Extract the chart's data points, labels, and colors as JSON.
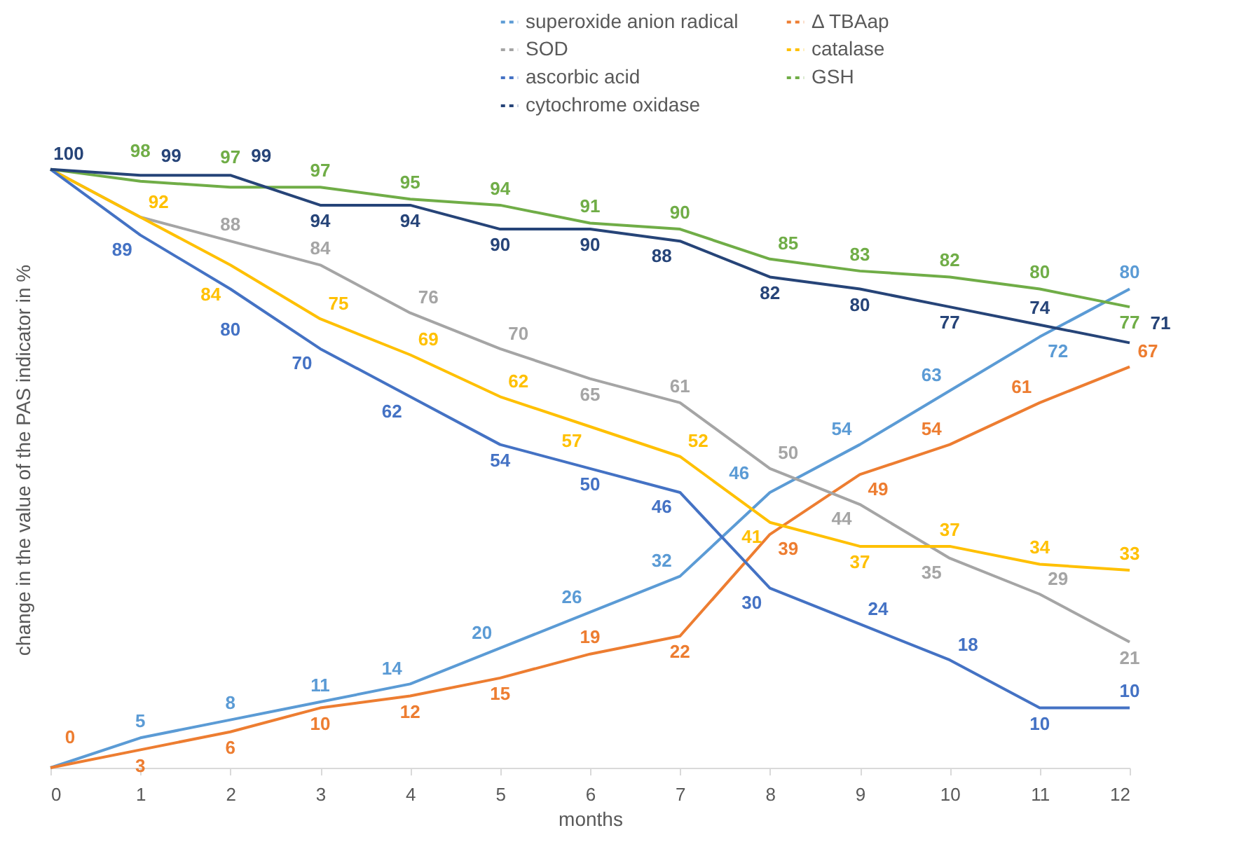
{
  "chart_data": {
    "type": "line",
    "xlabel": "months",
    "ylabel": "change in the value of the PAS indicator in %",
    "x": [
      0,
      1,
      2,
      3,
      4,
      5,
      6,
      7,
      8,
      9,
      10,
      11,
      12
    ],
    "xlim": [
      0,
      12
    ],
    "xticks": [
      0,
      1,
      2,
      3,
      4,
      5,
      6,
      7,
      8,
      9,
      10,
      11,
      12
    ],
    "tick_labels": "x",
    "series": [
      {
        "name": "superoxide anion radical",
        "color": "#5b9bd5",
        "values": [
          0,
          5,
          8,
          11,
          14,
          20,
          26,
          32,
          46,
          54,
          63,
          72,
          80
        ],
        "value_labels": [
          null,
          "5",
          "8",
          "11",
          "14",
          "20",
          "26",
          "32",
          "46",
          "54",
          "63",
          "72",
          "80"
        ]
      },
      {
        "name": "Δ TBAap",
        "color": "#ed7d31",
        "values": [
          0,
          3,
          6,
          10,
          12,
          15,
          19,
          22,
          39,
          49,
          54,
          61,
          67
        ],
        "value_labels": [
          "0",
          "3",
          "6",
          "10",
          "12",
          "15",
          "19",
          "22",
          "39",
          "49",
          "54",
          "61",
          "67"
        ]
      },
      {
        "name": "SOD",
        "color": "#a5a5a5",
        "values": [
          100,
          92,
          88,
          84,
          76,
          70,
          65,
          61,
          50,
          44,
          35,
          29,
          21
        ],
        "value_labels": [
          null,
          null,
          "88",
          "84",
          "76",
          "70",
          "65",
          "61",
          "50",
          "44",
          "35",
          "29",
          "21"
        ]
      },
      {
        "name": "catalase",
        "color": "#ffc000",
        "values": [
          100,
          92,
          84,
          75,
          69,
          62,
          57,
          52,
          41,
          37,
          37,
          34,
          33
        ],
        "value_labels": [
          null,
          "92",
          "84",
          "75",
          "69",
          "62",
          "57",
          "52",
          "41",
          "37",
          "37",
          "34",
          "33"
        ]
      },
      {
        "name": "ascorbic acid",
        "color": "#4472c4",
        "values": [
          100,
          89,
          80,
          70,
          62,
          54,
          50,
          46,
          30,
          24,
          18,
          10,
          10
        ],
        "value_labels": [
          null,
          "89",
          "80",
          "70",
          "62",
          "54",
          "50",
          "46",
          "30",
          "24",
          "18",
          "10",
          "10"
        ]
      },
      {
        "name": "GSH",
        "color": "#70ad47",
        "values": [
          100,
          98,
          97,
          97,
          95,
          94,
          91,
          90,
          85,
          83,
          82,
          80,
          77
        ],
        "value_labels": [
          null,
          "98",
          "97",
          "97",
          "95",
          "94",
          "91",
          "90",
          "85",
          "83",
          "82",
          "80",
          "77"
        ]
      },
      {
        "name": "cytochrome oxidase",
        "color": "#264478",
        "values": [
          100,
          99,
          99,
          94,
          94,
          90,
          90,
          88,
          82,
          80,
          77,
          74,
          71
        ],
        "value_labels": [
          "100",
          "99",
          "99",
          "94",
          "94",
          "90",
          "90",
          "88",
          "82",
          "80",
          "77",
          "74",
          "71"
        ]
      }
    ],
    "legend": "top right",
    "grid": false,
    "marker": "none",
    "line_style": "solid"
  }
}
